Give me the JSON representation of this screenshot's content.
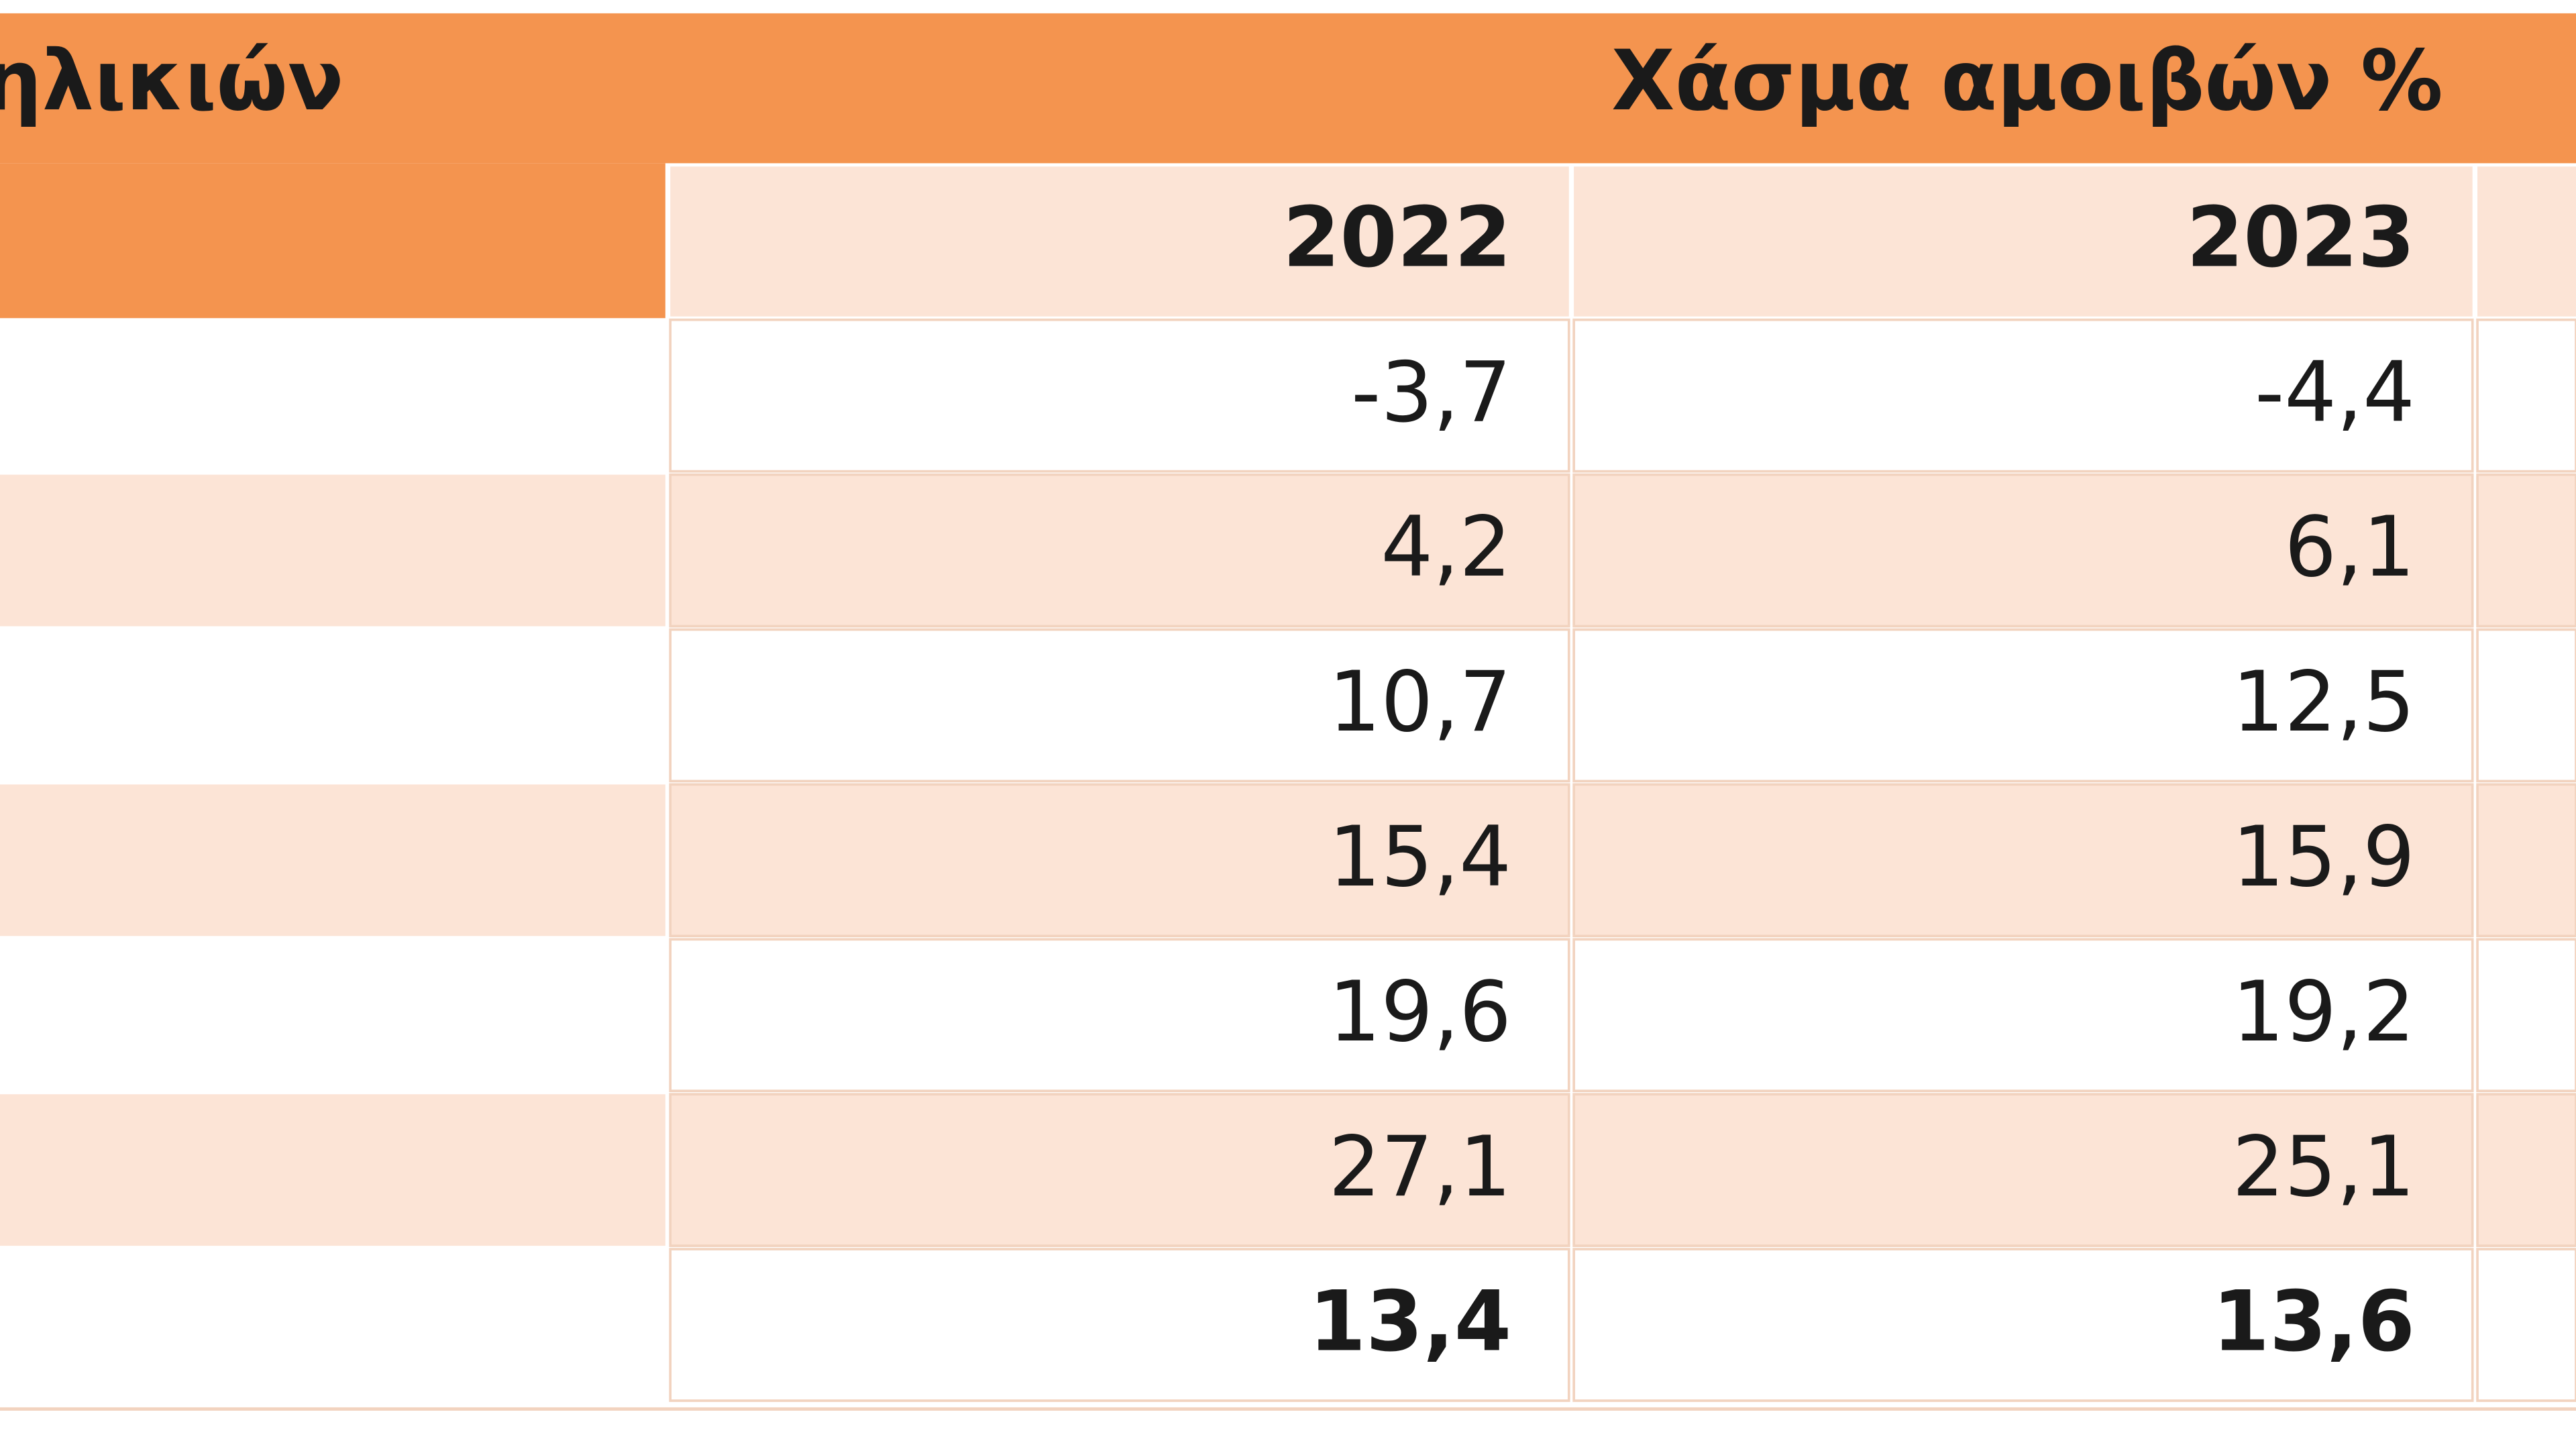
{
  "header": {
    "group_label": "ηλικιών",
    "title": "Χάσμα αμοιβών %"
  },
  "table": {
    "columns": [
      "2022",
      "2023"
    ],
    "rows": [
      [
        "-3,7",
        "-4,4"
      ],
      [
        "4,2",
        "6,1"
      ],
      [
        "10,7",
        "12,5"
      ],
      [
        "15,4",
        "15,9"
      ],
      [
        "19,6",
        "19,2"
      ],
      [
        "27,1",
        "25,1"
      ],
      [
        "13,4",
        "13,6"
      ]
    ]
  }
}
